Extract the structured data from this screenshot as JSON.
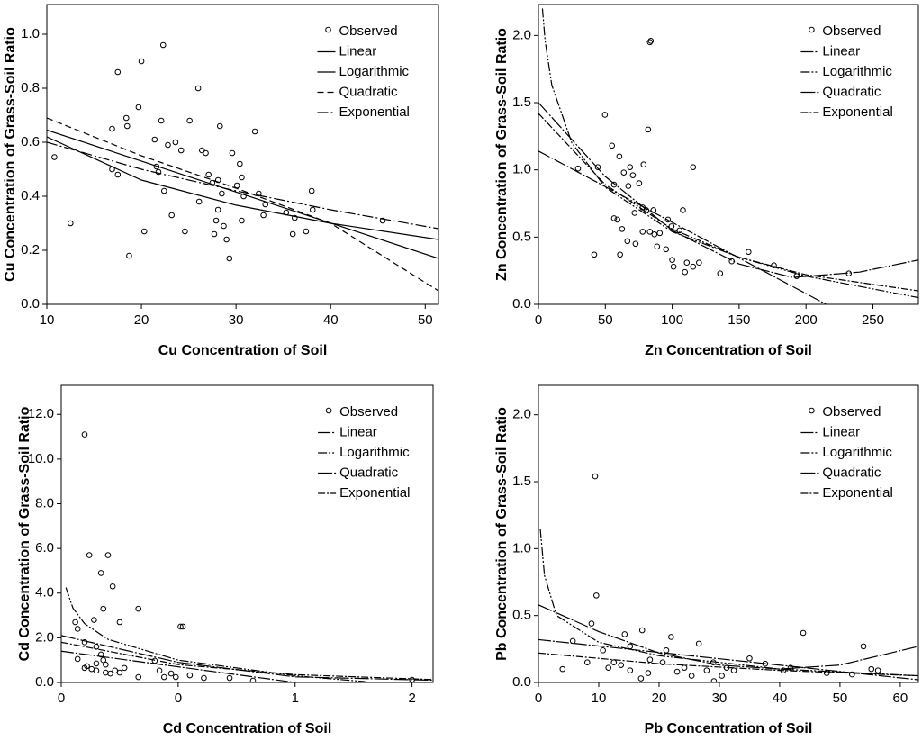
{
  "chart_data": [
    {
      "type": "scatter",
      "xlabel": "Cu Concentration of Soil",
      "ylabel": "Cu Concentration of Grass-Soil Ratio",
      "xlim": [
        10,
        51.4
      ],
      "ylim": [
        0,
        1.11
      ],
      "xticks": [
        10,
        20,
        30,
        40,
        50
      ],
      "yticks": [
        {
          "value": 0,
          "label": "0.0"
        },
        {
          "value": 0.2,
          "label": "0.2"
        },
        {
          "value": 0.4,
          "label": "0.4"
        },
        {
          "value": 0.6,
          "label": "0.6"
        },
        {
          "value": 0.8,
          "label": "0.8"
        },
        {
          "value": 1,
          "label": "1.0"
        }
      ],
      "series": [
        {
          "name": "Observed",
          "type": "scatter",
          "color": "#000000",
          "x": [
            10.8,
            12.5,
            17.5,
            20,
            22.3,
            16.9,
            18.4,
            18.5,
            19.7,
            16.9,
            17.5,
            18.7,
            20.3,
            21.4,
            22.1,
            22.8,
            23.6,
            24.2,
            25.1,
            26,
            21.6,
            21.8,
            22.4,
            23.2,
            24.6,
            26.4,
            26.8,
            27.1,
            27.5,
            28.1,
            28.3,
            28.5,
            26.1,
            27.7,
            27.9,
            28.1,
            28.7,
            29,
            29.3,
            29.6,
            30.1,
            30.4,
            30.6,
            30.8,
            30.6,
            32,
            32.4,
            32.9,
            33.1,
            35.3,
            36,
            36.2,
            37.4,
            38,
            38.1,
            45.5
          ],
          "values": [
            0.545,
            0.3,
            0.86,
            0.9,
            0.96,
            0.65,
            0.69,
            0.66,
            0.73,
            0.5,
            0.48,
            0.18,
            0.27,
            0.61,
            0.68,
            0.59,
            0.6,
            0.57,
            0.68,
            0.8,
            0.51,
            0.49,
            0.42,
            0.33,
            0.27,
            0.57,
            0.56,
            0.48,
            0.45,
            0.46,
            0.66,
            0.41,
            0.38,
            0.26,
            0.31,
            0.35,
            0.29,
            0.24,
            0.17,
            0.56,
            0.44,
            0.52,
            0.47,
            0.4,
            0.31,
            0.64,
            0.41,
            0.33,
            0.37,
            0.34,
            0.26,
            0.32,
            0.27,
            0.42,
            0.35,
            0.31
          ]
        },
        {
          "name": "Linear",
          "type": "line",
          "color": "#000000",
          "dash": "none",
          "x": [
            10,
            51.4
          ],
          "values": [
            0.645,
            0.17
          ]
        },
        {
          "name": "Logarithmic",
          "type": "line",
          "color": "#000000",
          "dash": "none",
          "x": [
            10,
            20,
            30,
            40,
            51.4
          ],
          "values": [
            0.62,
            0.46,
            0.367,
            0.3,
            0.24
          ]
        },
        {
          "name": "Quadratic",
          "type": "line",
          "color": "#000000",
          "dash": "7 4",
          "x": [
            10,
            20,
            30,
            40,
            51.4
          ],
          "values": [
            0.69,
            0.55,
            0.43,
            0.3,
            0.05
          ]
        },
        {
          "name": "Exponential",
          "type": "line",
          "color": "#000000",
          "dash": "12 3 2 3",
          "x": [
            10,
            20,
            30,
            40,
            51.4
          ],
          "values": [
            0.6,
            0.5,
            0.42,
            0.35,
            0.28
          ]
        }
      ]
    },
    {
      "type": "scatter",
      "xlabel": "Zn Concentration of Soil",
      "ylabel": "Zn Concentration of Grass-Soil Ratio",
      "xlim": [
        0,
        284
      ],
      "ylim": [
        0,
        2.23
      ],
      "xticks": [
        0,
        50,
        100,
        150,
        200,
        250
      ],
      "yticks": [
        {
          "value": 0,
          "label": "0.0"
        },
        {
          "value": 0.5,
          "label": "0.5"
        },
        {
          "value": 1,
          "label": "1.0"
        },
        {
          "value": 1.5,
          "label": "1.5"
        },
        {
          "value": 2,
          "label": "2.0"
        }
      ],
      "series": [
        {
          "name": "Observed",
          "type": "scatter",
          "color": "#000000",
          "x": [
            29.6,
            49.7,
            55,
            44.4,
            60.5,
            63.8,
            68.5,
            78.6,
            70.6,
            67.2,
            82,
            83.3,
            84,
            75.3,
            56.5,
            56.5,
            59,
            62.5,
            66.5,
            61,
            71.9,
            77.9,
            80.6,
            86,
            77.9,
            83.3,
            86.7,
            90.7,
            96.8,
            99.5,
            105.5,
            108,
            115.6,
            95.4,
            100,
            101,
            109.5,
            110.9,
            115.6,
            120,
            135.8,
            144.5,
            157,
            176,
            193,
            232,
            41.7,
            72.6,
            88.7
          ],
          "values": [
            1.01,
            1.41,
            1.18,
            1.02,
            1.1,
            0.98,
            1.02,
            1.04,
            0.96,
            0.88,
            1.3,
            1.95,
            1.96,
            0.9,
            0.89,
            0.64,
            0.63,
            0.56,
            0.47,
            0.37,
            0.68,
            0.72,
            0.7,
            0.7,
            0.54,
            0.54,
            0.52,
            0.53,
            0.63,
            0.58,
            0.55,
            0.7,
            1.02,
            0.41,
            0.33,
            0.28,
            0.24,
            0.31,
            0.28,
            0.31,
            0.23,
            0.32,
            0.39,
            0.29,
            0.21,
            0.23,
            0.37,
            0.45,
            0.43
          ]
        },
        {
          "name": "Linear",
          "type": "line",
          "color": "#000000",
          "dash": "14 2 2 2",
          "x": [
            0,
            215
          ],
          "values": [
            1.14,
            0
          ]
        },
        {
          "name": "Logarithmic",
          "type": "line",
          "color": "#000000",
          "dash": "10 2 2 2 2 2",
          "x": [
            3,
            5,
            10,
            25,
            50,
            100,
            150,
            200,
            284
          ],
          "values": [
            2.2,
            1.96,
            1.63,
            1.2,
            0.87,
            0.54,
            0.35,
            0.21,
            0.05
          ]
        },
        {
          "name": "Quadratic",
          "type": "line",
          "color": "#000000",
          "dash": "16 2 2 2",
          "x": [
            0,
            50,
            100,
            150,
            190,
            240,
            284
          ],
          "values": [
            1.5,
            0.95,
            0.55,
            0.3,
            0.2,
            0.24,
            0.33
          ]
        },
        {
          "name": "Exponential",
          "type": "line",
          "color": "#000000",
          "dash": "8 2 2 2",
          "x": [
            0,
            50,
            100,
            150,
            200,
            284
          ],
          "values": [
            1.42,
            0.89,
            0.56,
            0.35,
            0.22,
            0.1
          ]
        }
      ]
    },
    {
      "type": "scatter",
      "xlabel": "Cd Concentration of Soil",
      "ylabel": "Cd Concentration of Grass-Soil Ratio",
      "xlim": [
        0,
        1.59
      ],
      "ylim": [
        0,
        13.3
      ],
      "xticks": [
        0,
        {
          "value": 0.5,
          "label": "0"
        },
        1,
        {
          "value": 1.5,
          "label": "2"
        }
      ],
      "yticks": [
        {
          "value": 0,
          "label": "0.0"
        },
        {
          "value": 2,
          "label": "2.0"
        },
        {
          "value": 4,
          "label": "4.0"
        },
        {
          "value": 6,
          "label": "6.0"
        },
        {
          "value": 8,
          "label": "8.0"
        },
        {
          "value": 10,
          "label": "10.0"
        },
        {
          "value": 12,
          "label": "12.0"
        }
      ],
      "series": [
        {
          "name": "Observed",
          "type": "scatter",
          "color": "#000000",
          "x": [
            0.1,
            0.12,
            0.2,
            0.17,
            0.22,
            0.18,
            0.33,
            0.25,
            0.14,
            0.06,
            0.07,
            0.51,
            0.52,
            0.1,
            0.15,
            0.17,
            0.18,
            0.07,
            0.11,
            0.1,
            0.13,
            0.15,
            0.19,
            0.21,
            0.23,
            0.25,
            0.27,
            0.19,
            0.15,
            0.4,
            0.42,
            0.47,
            0.49,
            0.44,
            0.33,
            0.55,
            0.72,
            0.82,
            1.5,
            0.61
          ],
          "values": [
            11.1,
            5.7,
            5.7,
            4.9,
            4.3,
            3.3,
            3.3,
            2.7,
            2.8,
            2.7,
            2.4,
            2.5,
            2.5,
            1.8,
            1.6,
            1.25,
            1.0,
            1.05,
            0.73,
            0.65,
            0.6,
            0.53,
            0.44,
            0.4,
            0.53,
            0.44,
            0.65,
            0.8,
            0.85,
            0.97,
            0.53,
            0.4,
            0.24,
            0.24,
            0.24,
            0.32,
            0.2,
            0.08,
            0.12,
            0.2
          ]
        },
        {
          "name": "Linear",
          "type": "line",
          "color": "#000000",
          "dash": "14 2 2 2",
          "x": [
            0,
            1.0
          ],
          "values": [
            1.4,
            0
          ]
        },
        {
          "name": "Logarithmic",
          "type": "line",
          "color": "#000000",
          "dash": "10 2 2 2 2 2",
          "x": [
            0.02,
            0.05,
            0.1,
            0.2,
            0.5,
            1.0,
            1.3
          ],
          "values": [
            4.25,
            3.33,
            2.63,
            1.93,
            1.0,
            0.3,
            0.035
          ]
        },
        {
          "name": "Quadratic",
          "type": "line",
          "color": "#000000",
          "dash": "16 2 2 2",
          "x": [
            0,
            0.5,
            1.0,
            1.59
          ],
          "values": [
            2.1,
            0.9,
            0.25,
            0.1
          ]
        },
        {
          "name": "Exponential",
          "type": "line",
          "color": "#000000",
          "dash": "8 2 2 2",
          "x": [
            0,
            0.5,
            1.0,
            1.59
          ],
          "values": [
            1.8,
            0.8,
            0.35,
            0.13
          ]
        }
      ]
    },
    {
      "type": "scatter",
      "xlabel": "Pb Concentration of Soil",
      "ylabel": "Pb Concentration of Grass-Soil Ratio",
      "xlim": [
        0,
        63
      ],
      "ylim": [
        0,
        2.22
      ],
      "xticks": [
        0,
        10,
        20,
        30,
        40,
        50,
        60
      ],
      "yticks": [
        {
          "value": 0,
          "label": "0.0"
        },
        {
          "value": 0.5,
          "label": "0.5"
        },
        {
          "value": 1,
          "label": "1.0"
        },
        {
          "value": 1.5,
          "label": "1.5"
        },
        {
          "value": 2,
          "label": "2.0"
        }
      ],
      "series": [
        {
          "name": "Observed",
          "type": "scatter",
          "color": "#000000",
          "x": [
            9.4,
            9.6,
            8.8,
            5.7,
            4.0,
            8.1,
            10.7,
            12.5,
            14.3,
            17.2,
            20.6,
            22,
            26.6,
            29,
            35,
            43.9,
            53.9,
            55.2,
            56.3,
            52,
            47.8,
            41.8,
            40.6,
            37.6,
            32.4,
            30.4,
            27.9,
            25.4,
            24.2,
            23,
            18.2,
            17,
            15.2,
            13.7,
            11.6,
            21.2,
            15.2,
            18.5,
            31.2,
            29.1
          ],
          "values": [
            1.54,
            0.65,
            0.44,
            0.31,
            0.1,
            0.15,
            0.24,
            0.15,
            0.36,
            0.39,
            0.15,
            0.34,
            0.29,
            0.15,
            0.18,
            0.37,
            0.27,
            0.1,
            0.09,
            0.06,
            0.07,
            0.11,
            0.09,
            0.14,
            0.09,
            0.05,
            0.09,
            0.05,
            0.11,
            0.08,
            0.07,
            0.03,
            0.09,
            0.13,
            0.11,
            0.24,
            0.27,
            0.17,
            0.11,
            0.01
          ]
        },
        {
          "name": "Linear",
          "type": "line",
          "color": "#000000",
          "dash": "14 2 2 2",
          "x": [
            0,
            63
          ],
          "values": [
            0.32,
            0.02
          ]
        },
        {
          "name": "Logarithmic",
          "type": "line",
          "color": "#000000",
          "dash": "10 2 2 2 2 2",
          "x": [
            0.3,
            1,
            3,
            10,
            20,
            40,
            63
          ],
          "values": [
            1.15,
            0.8,
            0.5,
            0.3,
            0.2,
            0.1,
            0.05
          ]
        },
        {
          "name": "Quadratic",
          "type": "line",
          "color": "#000000",
          "dash": "16 2 2 2",
          "x": [
            0,
            10,
            20,
            30,
            40,
            50,
            63
          ],
          "values": [
            0.58,
            0.38,
            0.22,
            0.13,
            0.1,
            0.13,
            0.27
          ]
        },
        {
          "name": "Exponential",
          "type": "line",
          "color": "#000000",
          "dash": "8 2 2 2",
          "x": [
            0,
            20,
            40,
            63
          ],
          "values": [
            0.22,
            0.14,
            0.09,
            0.05
          ]
        }
      ]
    }
  ]
}
